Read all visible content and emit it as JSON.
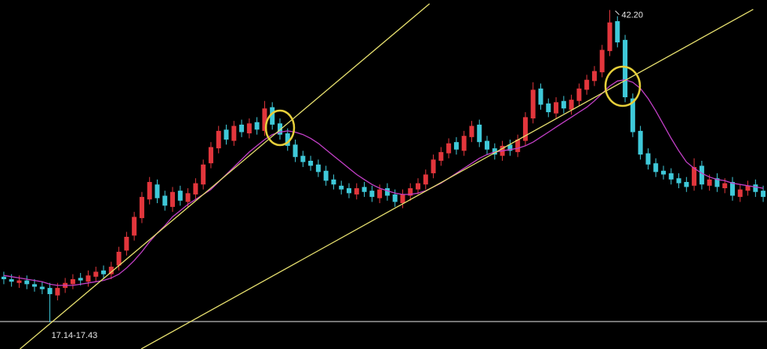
{
  "chart_data": {
    "type": "candlestick",
    "ylim": [
      15,
      43
    ],
    "up_color": "#e2363c",
    "down_color": "#3fc9d9",
    "open": [
      20.8,
      20.6,
      20.3,
      20.5,
      20.2,
      20.0,
      19.9,
      19.3,
      19.9,
      20.2,
      20.7,
      20.4,
      20.8,
      21.3,
      21.0,
      21.7,
      22.9,
      24.1,
      25.5,
      27.0,
      28.2,
      27.3,
      26.4,
      27.7,
      26.8,
      27.4,
      28.2,
      29.9,
      31.1,
      32.6,
      31.7,
      33.0,
      32.3,
      33.2,
      32.5,
      34.4,
      33.1,
      32.3,
      31.4,
      30.5,
      30.1,
      29.8,
      29.3,
      28.6,
      28.1,
      27.9,
      27.4,
      28.0,
      27.7,
      27.1,
      27.9,
      27.4,
      26.7,
      27.3,
      27.8,
      28.2,
      29.1,
      30.1,
      30.7,
      31.6,
      30.9,
      32.0,
      33.0,
      31.7,
      31.1,
      30.5,
      31.4,
      30.8,
      31.7,
      33.5,
      35.9,
      34.7,
      33.9,
      34.9,
      34.2,
      34.9,
      35.8,
      36.5,
      37.2,
      38.9,
      41.3,
      39.8,
      35.1,
      32.5,
      30.7,
      29.9,
      29.3,
      29.1,
      28.7,
      28.4,
      28.1,
      29.7,
      28.1,
      28.7,
      27.9,
      28.4,
      27.2,
      27.7,
      28.2,
      27.7
    ],
    "high": [
      21.2,
      21.0,
      20.9,
      20.9,
      20.6,
      20.4,
      20.3,
      20.3,
      20.7,
      21.0,
      21.1,
      21.3,
      21.6,
      21.7,
      22.0,
      23.2,
      24.4,
      26.0,
      27.6,
      28.8,
      28.6,
      27.7,
      28.0,
      28.1,
      27.9,
      28.7,
      30.2,
      31.6,
      32.9,
      33.0,
      33.3,
      33.4,
      33.5,
      33.6,
      34.9,
      34.8,
      33.5,
      32.7,
      31.8,
      30.9,
      30.5,
      30.2,
      29.7,
      29.0,
      28.5,
      28.3,
      28.3,
      28.4,
      28.1,
      28.2,
      28.3,
      27.8,
      27.8,
      28.3,
      28.7,
      29.4,
      30.6,
      31.2,
      31.9,
      32.0,
      32.5,
      33.3,
      33.4,
      32.1,
      31.5,
      31.7,
      31.8,
      32.2,
      34.0,
      36.4,
      36.3,
      35.1,
      35.2,
      35.3,
      35.4,
      36.3,
      37.0,
      37.7,
      39.4,
      42.2,
      41.7,
      40.2,
      35.5,
      32.9,
      31.1,
      30.3,
      29.7,
      29.5,
      29.1,
      28.8,
      30.3,
      30.1,
      29.0,
      29.1,
      28.7,
      28.8,
      28.2,
      28.5,
      28.6,
      28.1
    ],
    "low": [
      20.2,
      20.0,
      19.9,
      19.8,
      19.6,
      19.4,
      17.14,
      18.9,
      19.5,
      19.8,
      20.1,
      20.0,
      20.4,
      20.6,
      20.6,
      21.3,
      22.5,
      23.7,
      25.1,
      26.6,
      26.7,
      26.1,
      26.0,
      26.5,
      26.4,
      27.0,
      27.8,
      29.5,
      30.7,
      31.4,
      31.3,
      32.0,
      31.9,
      32.2,
      32.1,
      32.6,
      31.8,
      30.9,
      30.0,
      29.6,
      29.3,
      28.8,
      28.1,
      27.8,
      27.4,
      27.1,
      27.0,
      27.2,
      26.8,
      26.7,
      26.9,
      26.4,
      26.3,
      26.9,
      27.4,
      27.8,
      28.7,
      29.7,
      30.3,
      30.6,
      30.5,
      31.6,
      31.2,
      30.6,
      30.2,
      30.1,
      30.5,
      30.4,
      31.3,
      33.1,
      34.2,
      33.6,
      33.5,
      33.9,
      33.8,
      34.5,
      35.4,
      36.1,
      36.8,
      38.5,
      39.2,
      34.8,
      32.0,
      30.2,
      29.4,
      28.8,
      28.6,
      28.2,
      27.9,
      27.6,
      27.7,
      27.8,
      27.7,
      27.6,
      27.5,
      26.9,
      26.8,
      27.3,
      27.2,
      26.8
    ],
    "close": [
      20.6,
      20.4,
      20.5,
      20.2,
      20.0,
      19.8,
      19.4,
      19.9,
      20.3,
      20.6,
      20.5,
      20.9,
      21.2,
      21.0,
      21.6,
      22.8,
      24.0,
      25.6,
      27.2,
      28.4,
      27.1,
      26.5,
      27.6,
      26.9,
      27.5,
      28.3,
      29.8,
      31.2,
      32.5,
      31.8,
      32.9,
      32.4,
      33.1,
      32.6,
      34.3,
      33.0,
      32.2,
      31.3,
      30.4,
      30.0,
      29.7,
      29.2,
      28.5,
      28.2,
      27.8,
      27.5,
      27.9,
      27.6,
      27.2,
      27.8,
      27.3,
      26.8,
      27.4,
      27.9,
      28.3,
      29.0,
      30.2,
      30.8,
      31.5,
      31.0,
      32.1,
      32.9,
      31.6,
      31.0,
      30.6,
      31.3,
      30.9,
      31.8,
      33.6,
      35.8,
      34.6,
      34.0,
      34.8,
      34.3,
      35.0,
      35.9,
      36.6,
      37.3,
      39.0,
      41.2,
      39.6,
      35.2,
      32.4,
      30.6,
      29.8,
      29.2,
      29.0,
      28.6,
      28.3,
      28.0,
      29.6,
      28.2,
      28.6,
      28.0,
      28.3,
      27.3,
      27.8,
      28.1,
      27.6,
      27.2
    ],
    "ma": {
      "color": "#c23fc6",
      "values": [
        20.9,
        20.8,
        20.7,
        20.6,
        20.5,
        20.4,
        20.2,
        20.1,
        20.1,
        20.1,
        20.2,
        20.3,
        20.4,
        20.5,
        20.7,
        21.0,
        21.5,
        22.1,
        22.8,
        23.6,
        24.3,
        24.9,
        25.6,
        26.1,
        26.6,
        27.0,
        27.4,
        27.8,
        28.4,
        29.0,
        29.6,
        30.2,
        30.8,
        31.3,
        31.8,
        32.2,
        32.4,
        32.5,
        32.4,
        32.2,
        31.9,
        31.5,
        31.0,
        30.5,
        30.0,
        29.5,
        29.0,
        28.6,
        28.2,
        27.9,
        27.7,
        27.5,
        27.4,
        27.4,
        27.5,
        27.7,
        28.0,
        28.3,
        28.7,
        29.1,
        29.5,
        29.9,
        30.3,
        30.6,
        30.8,
        30.9,
        31.0,
        31.1,
        31.3,
        31.6,
        32.0,
        32.4,
        32.8,
        33.2,
        33.6,
        34.0,
        34.4,
        34.9,
        35.5,
        36.1,
        36.5,
        36.6,
        36.4,
        35.9,
        35.1,
        34.1,
        33.0,
        31.9,
        30.9,
        30.0,
        29.5,
        29.1,
        28.8,
        28.6,
        28.5,
        28.3,
        28.2,
        28.1,
        28.0,
        27.9
      ]
    },
    "trendlines": [
      {
        "color": "#e6df6e",
        "x": [
          2.1,
          55.5
        ],
        "y": [
          15.0,
          42.7
        ]
      },
      {
        "color": "#e6df6e",
        "x": [
          17.9,
          97.7
        ],
        "y": [
          15.0,
          42.25
        ]
      }
    ],
    "hline": {
      "value": 17.2,
      "color": "#9a9a9a"
    },
    "annotations": [
      {
        "label": "42.20",
        "value": 42.2,
        "at": "high"
      },
      {
        "label": "17.14-17.43",
        "value": 17.14,
        "at": "low"
      }
    ]
  }
}
